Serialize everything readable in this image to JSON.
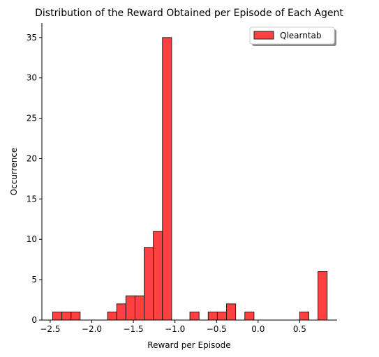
{
  "chart_data": {
    "type": "bar",
    "title": "Distribution of the Reward Obtained per Episode of Each Agent",
    "xlabel": "Reward per Episode",
    "ylabel": "Occurrence",
    "xlim": [
      -2.6,
      0.95
    ],
    "ylim": [
      0,
      36.8
    ],
    "xticks": [
      -2.5,
      -2.0,
      -1.5,
      -1.0,
      -0.5,
      0.0,
      0.5
    ],
    "xtick_labels": [
      "−2.5",
      "−2.0",
      "−1.5",
      "−1.0",
      "−0.5",
      "0.0",
      "0.5"
    ],
    "yticks": [
      0,
      5,
      10,
      15,
      20,
      25,
      30,
      35
    ],
    "ytick_labels": [
      "0",
      "5",
      "10",
      "15",
      "20",
      "25",
      "30",
      "35"
    ],
    "grid": false,
    "legend_position": "top-right",
    "series": [
      {
        "name": "Qlearntab",
        "color": "#ff0000",
        "bins": [
          {
            "x0": -2.47,
            "x1": -2.36,
            "count": 1
          },
          {
            "x0": -2.36,
            "x1": -2.25,
            "count": 1
          },
          {
            "x0": -2.25,
            "x1": -2.14,
            "count": 1
          },
          {
            "x0": -2.14,
            "x1": -2.03,
            "count": 0
          },
          {
            "x0": -2.03,
            "x1": -1.92,
            "count": 0
          },
          {
            "x0": -1.92,
            "x1": -1.81,
            "count": 0
          },
          {
            "x0": -1.81,
            "x1": -1.7,
            "count": 1
          },
          {
            "x0": -1.7,
            "x1": -1.59,
            "count": 2
          },
          {
            "x0": -1.59,
            "x1": -1.48,
            "count": 3
          },
          {
            "x0": -1.48,
            "x1": -1.37,
            "count": 3
          },
          {
            "x0": -1.37,
            "x1": -1.26,
            "count": 9
          },
          {
            "x0": -1.26,
            "x1": -1.15,
            "count": 11
          },
          {
            "x0": -1.15,
            "x1": -1.04,
            "count": 35
          },
          {
            "x0": -1.04,
            "x1": -0.93,
            "count": 0
          },
          {
            "x0": -0.93,
            "x1": -0.82,
            "count": 0
          },
          {
            "x0": -0.82,
            "x1": -0.71,
            "count": 1
          },
          {
            "x0": -0.71,
            "x1": -0.6,
            "count": 0
          },
          {
            "x0": -0.6,
            "x1": -0.49,
            "count": 1
          },
          {
            "x0": -0.49,
            "x1": -0.38,
            "count": 1
          },
          {
            "x0": -0.38,
            "x1": -0.27,
            "count": 2
          },
          {
            "x0": -0.27,
            "x1": -0.16,
            "count": 0
          },
          {
            "x0": -0.16,
            "x1": -0.05,
            "count": 1
          },
          {
            "x0": -0.05,
            "x1": 0.06,
            "count": 0
          },
          {
            "x0": 0.06,
            "x1": 0.17,
            "count": 0
          },
          {
            "x0": 0.17,
            "x1": 0.28,
            "count": 0
          },
          {
            "x0": 0.28,
            "x1": 0.39,
            "count": 0
          },
          {
            "x0": 0.39,
            "x1": 0.5,
            "count": 0
          },
          {
            "x0": 0.5,
            "x1": 0.61,
            "count": 1
          },
          {
            "x0": 0.61,
            "x1": 0.72,
            "count": 0
          },
          {
            "x0": 0.72,
            "x1": 0.83,
            "count": 6
          }
        ]
      }
    ]
  }
}
